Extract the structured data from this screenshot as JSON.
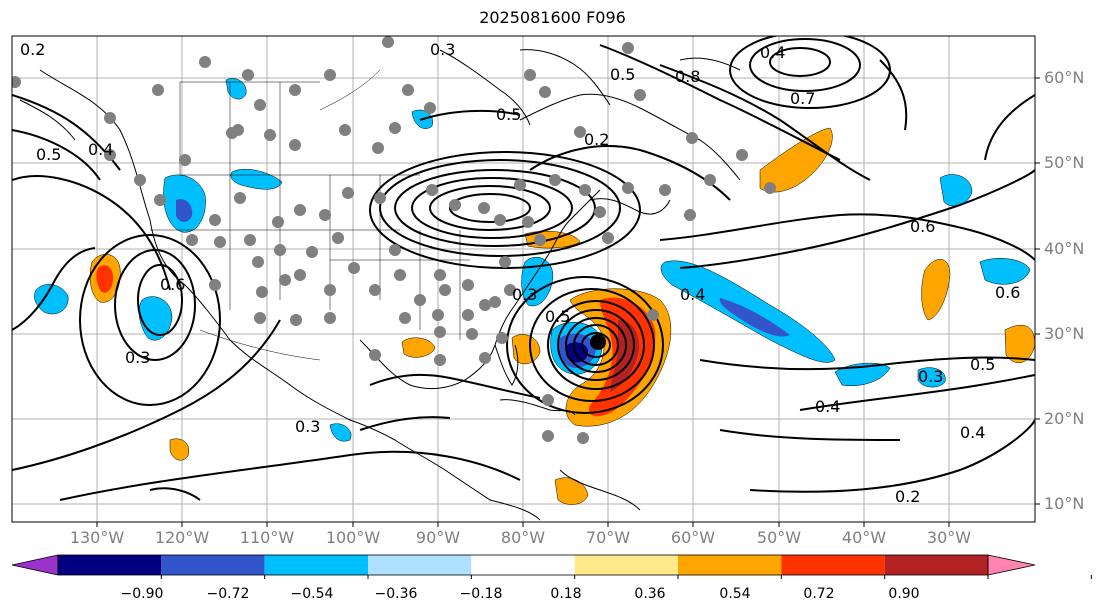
{
  "title": "2025081600 F096",
  "map": {
    "lat_ticks": [
      "60°N",
      "50°N",
      "40°N",
      "30°N",
      "20°N",
      "10°N"
    ],
    "lon_ticks": [
      "130°W",
      "120°W",
      "110°W",
      "100°W",
      "90°W",
      "80°W",
      "70°W",
      "60°W",
      "50°W",
      "40°W",
      "30°W"
    ],
    "contour_labels": [
      "0.2",
      "0.3",
      "0.4",
      "0.5",
      "0.6",
      "0.7",
      "0.8"
    ],
    "storm_marker": "black-dot"
  },
  "colorbar": {
    "ticks": [
      "−0.90",
      "−0.72",
      "−0.54",
      "−0.36",
      "−0.18",
      "0.18",
      "0.36",
      "0.54",
      "0.72",
      "0.90"
    ],
    "colors": [
      "#9933cc",
      "#000080",
      "#3355cc",
      "#00bfff",
      "#aee0ff",
      "#ffffff",
      "#ffe98a",
      "#ffa500",
      "#ff3300",
      "#b22222",
      "#ff85b0"
    ]
  }
}
